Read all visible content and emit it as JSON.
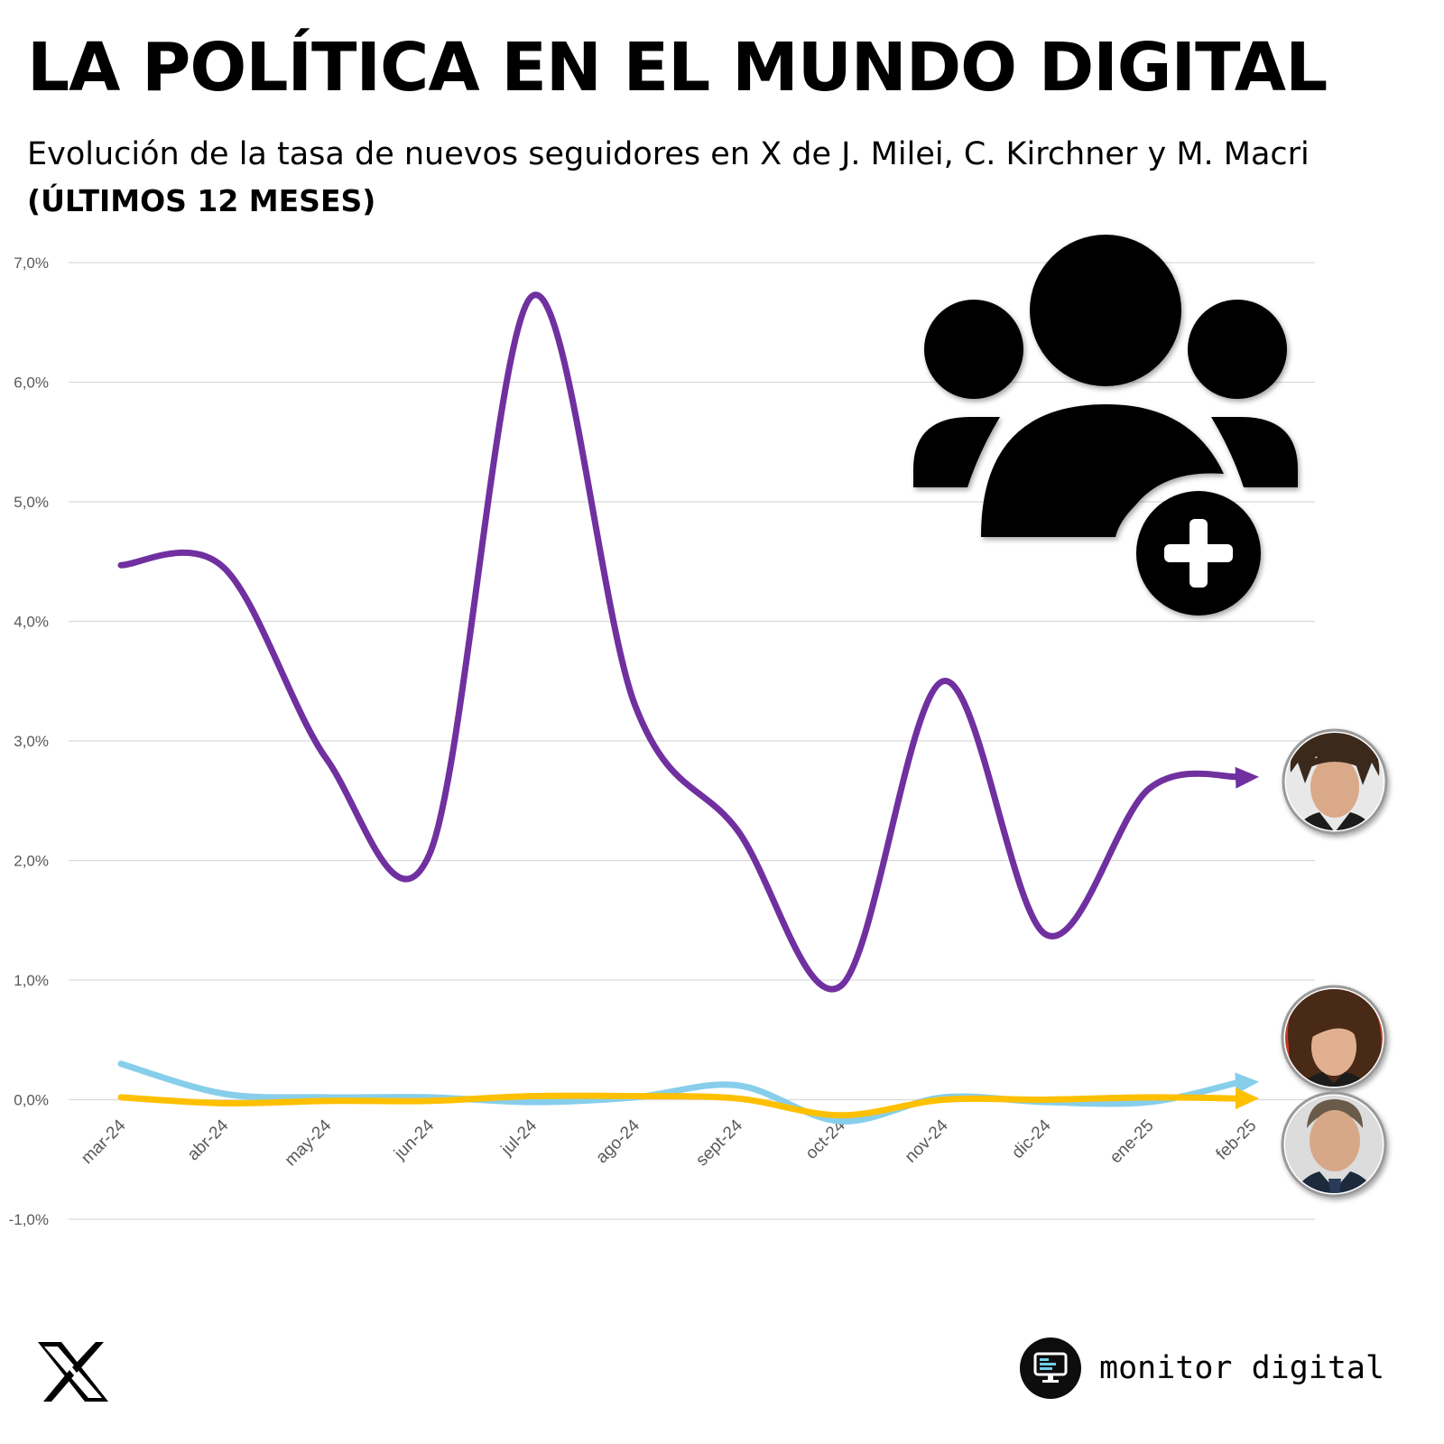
{
  "header": {
    "title": "LA POLÍTICA EN EL MUNDO DIGITAL",
    "subtitle": "Evolución de la tasa de nuevos seguidores en X de J. Milei, C. Kirchner y M. Macri",
    "period": "(ÚLTIMOS 12 MESES)"
  },
  "chart_data": {
    "type": "line",
    "title": "",
    "xlabel": "",
    "ylabel": "",
    "categories": [
      "mar-24",
      "abr-24",
      "may-24",
      "jun-24",
      "jul-24",
      "ago-24",
      "sept-24",
      "oct-24",
      "nov-24",
      "dic-24",
      "ene-25",
      "feb-25"
    ],
    "y_ticks": [
      "7,0%",
      "6,0%",
      "5,0%",
      "4,0%",
      "3,0%",
      "2,0%",
      "1,0%",
      "0,0%",
      "-1,0%"
    ],
    "y_tick_values": [
      7,
      6,
      5,
      4,
      3,
      2,
      1,
      0,
      -1
    ],
    "ylim": [
      -1,
      7
    ],
    "y_unit": "%",
    "grid": true,
    "smoothed": true,
    "series": [
      {
        "color": "#7030a0",
        "values": [
          4.47,
          4.45,
          2.85,
          2.05,
          6.72,
          3.3,
          2.25,
          0.95,
          3.5,
          1.38,
          2.6,
          2.7
        ]
      },
      {
        "color": "#87ceeb",
        "values": [
          0.3,
          0.05,
          0.02,
          0.02,
          -0.02,
          0.02,
          0.12,
          -0.18,
          0.02,
          -0.02,
          -0.02,
          0.15
        ]
      },
      {
        "color": "#ffc000",
        "values": [
          0.02,
          -0.03,
          -0.01,
          -0.01,
          0.03,
          0.03,
          0.01,
          -0.13,
          0.0,
          0.0,
          0.02,
          0.01
        ]
      }
    ]
  },
  "icons": {
    "group_icon": "users-add-icon",
    "portraits": [
      "portrait-milei",
      "portrait-kirchner",
      "portrait-macri"
    ],
    "platform_logo": "x-logo",
    "brand_icon": "monitor-icon"
  },
  "footer": {
    "brand_name": "monitor digital"
  }
}
